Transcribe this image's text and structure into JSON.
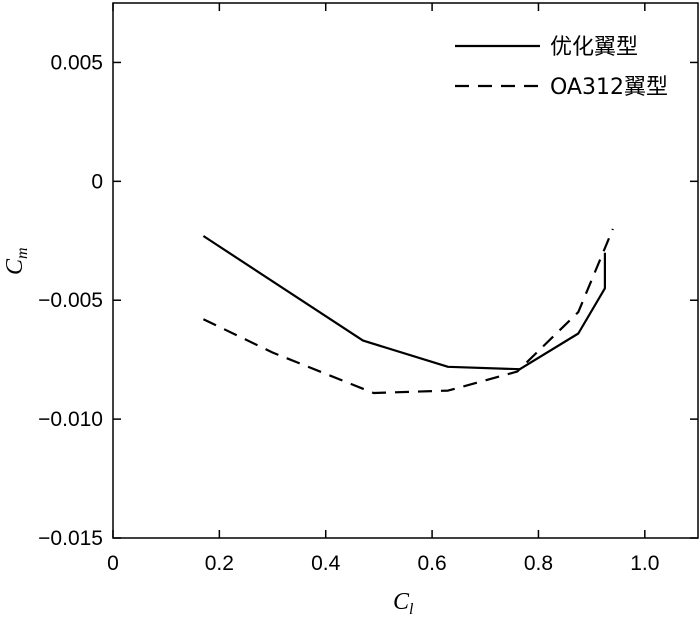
{
  "chart_data": {
    "type": "line",
    "xlabel": "C",
    "xlabel_sub": "l",
    "ylabel": "C",
    "ylabel_sub": "m",
    "xlim": [
      0,
      1.1
    ],
    "ylim": [
      -0.015,
      0.0075
    ],
    "x_ticks": [
      0,
      0.2,
      0.4,
      0.6,
      0.8,
      1.0
    ],
    "x_tick_labels": [
      "0",
      "0.2",
      "0.4",
      "0.6",
      "0.8",
      "1.0"
    ],
    "y_ticks": [
      0.005,
      0,
      -0.005,
      -0.01,
      -0.015
    ],
    "y_tick_labels": [
      "0.005",
      "0",
      "−0.005",
      "−0.010",
      "−0.015"
    ],
    "grid": false,
    "legend_position": "top-right",
    "series": [
      {
        "name": "优化翼型",
        "style": "solid",
        "color": "#000000",
        "x": [
          0.17,
          0.47,
          0.63,
          0.765,
          0.875,
          0.925,
          0.925
        ],
        "y": [
          -0.0023,
          -0.0067,
          -0.0078,
          -0.0079,
          -0.0064,
          -0.0045,
          -0.003
        ]
      },
      {
        "name": "OA312翼型",
        "style": "dashed",
        "color": "#000000",
        "x": [
          0.17,
          0.3,
          0.49,
          0.63,
          0.76,
          0.875,
          0.94
        ],
        "y": [
          -0.0058,
          -0.0072,
          -0.0089,
          -0.0088,
          -0.008,
          -0.0055,
          -0.002
        ]
      }
    ]
  }
}
